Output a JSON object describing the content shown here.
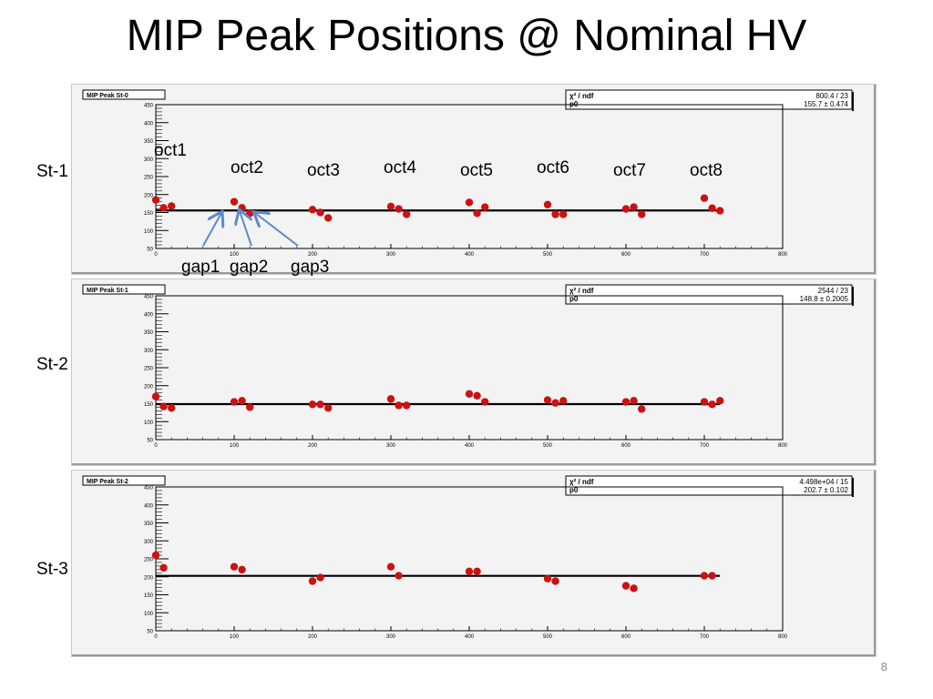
{
  "title": "MIP Peak Positions @ Nominal HV",
  "page_number": "8",
  "octant_labels": [
    "oct1",
    "oct2",
    "oct3",
    "oct4",
    "oct5",
    "oct6",
    "oct7",
    "oct8"
  ],
  "gap_labels": [
    "gap1",
    "gap2",
    "gap3"
  ],
  "colors": {
    "marker": "#cc1111",
    "fit_line": "#000000",
    "arrow": "#5b8cc8",
    "frame_bg": "#f3f3f3"
  },
  "chart_data": [
    {
      "type": "scatter",
      "station_label": "St-1",
      "title": "MIP Peak St-0",
      "stats": {
        "chi2_label": "χ² / ndf",
        "chi2_value": "800.4 / 23",
        "p0_label": "p0",
        "p0_value": "155.7 ± 0.474"
      },
      "fit": 155.7,
      "xlim": [
        0,
        800
      ],
      "ylim": [
        50,
        450
      ],
      "x_ticks": [
        "0",
        "100",
        "200",
        "300",
        "400",
        "500",
        "600",
        "700",
        "800"
      ],
      "y_ticks": [
        "50",
        "100",
        "150",
        "200",
        "250",
        "300",
        "350",
        "400",
        "450"
      ],
      "x": [
        0,
        10,
        20,
        100,
        110,
        120,
        200,
        210,
        220,
        300,
        310,
        320,
        400,
        410,
        420,
        500,
        510,
        520,
        600,
        610,
        620,
        700,
        710,
        720
      ],
      "y": [
        185,
        163,
        168,
        180,
        163,
        148,
        158,
        150,
        135,
        167,
        160,
        145,
        178,
        148,
        165,
        172,
        145,
        145,
        160,
        165,
        145,
        190,
        162,
        155
      ]
    },
    {
      "type": "scatter",
      "station_label": "St-2",
      "title": "MIP Peak St-1",
      "stats": {
        "chi2_label": "χ² / ndf",
        "chi2_value": "2544 / 23",
        "p0_label": "p0",
        "p0_value": "148.8 ± 0.2005"
      },
      "fit": 148.8,
      "xlim": [
        0,
        800
      ],
      "ylim": [
        50,
        450
      ],
      "x_ticks": [
        "0",
        "100",
        "200",
        "300",
        "400",
        "500",
        "600",
        "700",
        "800"
      ],
      "y_ticks": [
        "50",
        "100",
        "150",
        "200",
        "250",
        "300",
        "350",
        "400",
        "450"
      ],
      "x": [
        0,
        10,
        20,
        100,
        110,
        120,
        200,
        210,
        220,
        300,
        310,
        320,
        400,
        410,
        420,
        500,
        510,
        520,
        600,
        610,
        620,
        700,
        710,
        720
      ],
      "y": [
        170,
        142,
        138,
        155,
        158,
        140,
        148,
        148,
        138,
        163,
        145,
        145,
        177,
        172,
        155,
        160,
        152,
        158,
        155,
        158,
        135,
        155,
        148,
        158
      ]
    },
    {
      "type": "scatter",
      "station_label": "St-3",
      "title": "MIP Peak St-2",
      "stats": {
        "chi2_label": "χ² / ndf",
        "chi2_value": "4.498e+04 / 15",
        "p0_label": "p0",
        "p0_value": "202.7 ± 0.102"
      },
      "fit": 202.7,
      "xlim": [
        0,
        800
      ],
      "ylim": [
        50,
        450
      ],
      "x_ticks": [
        "0",
        "100",
        "200",
        "300",
        "400",
        "500",
        "600",
        "700",
        "800"
      ],
      "y_ticks": [
        "50",
        "100",
        "150",
        "200",
        "250",
        "300",
        "350",
        "400",
        "450"
      ],
      "x": [
        0,
        10,
        100,
        110,
        200,
        210,
        300,
        310,
        400,
        410,
        500,
        510,
        600,
        610,
        700,
        710
      ],
      "y": [
        260,
        225,
        228,
        220,
        188,
        198,
        228,
        203,
        215,
        215,
        195,
        188,
        175,
        168,
        203,
        203
      ]
    }
  ]
}
